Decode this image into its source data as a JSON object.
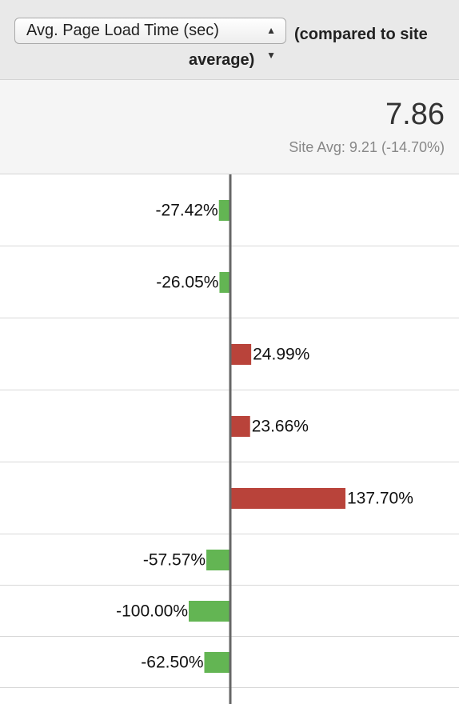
{
  "header": {
    "metric_select": "Avg. Page Load Time (sec)",
    "compared_note": "(compared to site average)"
  },
  "summary": {
    "value": "7.86",
    "site_avg": "Site Avg: 9.21 (-14.70%)"
  },
  "chart_data": {
    "type": "bar",
    "orientation": "horizontal",
    "values": [
      -27.42,
      -26.05,
      24.99,
      23.66,
      137.7,
      -57.57,
      -100.0,
      -62.5
    ],
    "value_labels": [
      "-27.42%",
      "-26.05%",
      "24.99%",
      "23.66%",
      "137.70%",
      "-57.57%",
      "-100.00%",
      "-62.50%"
    ],
    "positive_color": "#b9433a",
    "negative_color": "#63b553"
  }
}
